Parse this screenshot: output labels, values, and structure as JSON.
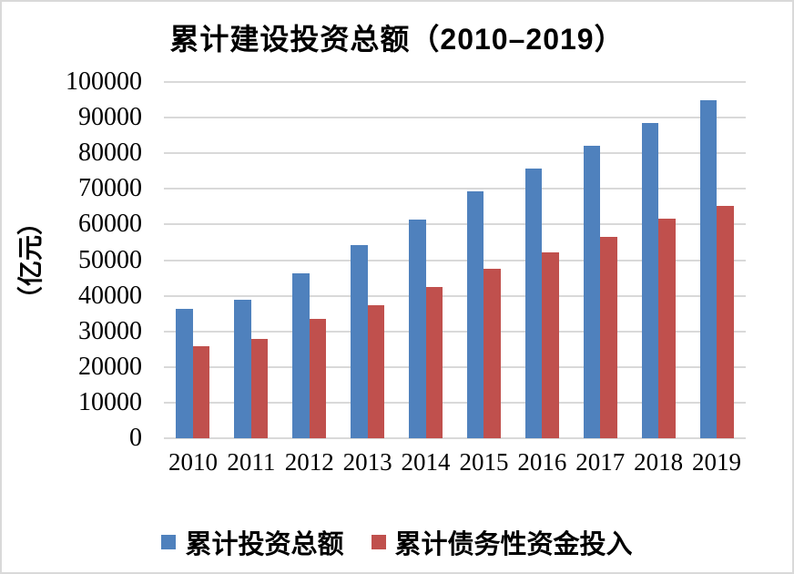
{
  "chart_data": {
    "type": "bar",
    "title": "累计建设投资总额（2010–2019）",
    "ylabel": "（亿元）",
    "xlabel": "",
    "categories": [
      "2010",
      "2011",
      "2012",
      "2013",
      "2014",
      "2015",
      "2016",
      "2017",
      "2018",
      "2019"
    ],
    "series": [
      {
        "name": "累计投资总额",
        "color": "#4F81BD",
        "values": [
          36200,
          38800,
          46200,
          54100,
          61300,
          69300,
          75800,
          82000,
          88400,
          95000
        ]
      },
      {
        "name": "累计债务性资金投入",
        "color": "#C0504D",
        "values": [
          25800,
          27900,
          33500,
          37300,
          42400,
          47500,
          52200,
          56500,
          61600,
          65200
        ]
      }
    ],
    "ylim": [
      0,
      100000
    ],
    "y_tick_step": 10000,
    "y_tick_labels": [
      "0",
      "10000",
      "20000",
      "30000",
      "40000",
      "50000",
      "60000",
      "70000",
      "80000",
      "90000",
      "100000"
    ],
    "grid": true,
    "gridline_color": "#D9D9D9",
    "legend_position": "bottom",
    "background_color": "#FFFFFF",
    "border_color": "#D9D9D9"
  }
}
